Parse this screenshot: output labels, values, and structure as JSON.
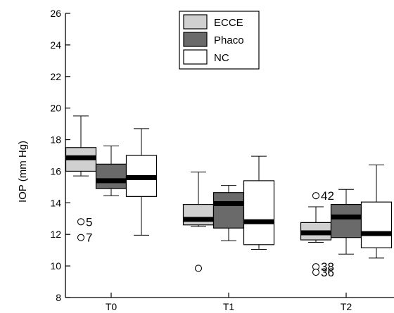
{
  "chart_data": {
    "type": "box",
    "ylabel": "IOP (mm Hg)",
    "xlabel": "",
    "ylim": [
      8,
      26
    ],
    "yticks": [
      8,
      10,
      12,
      14,
      16,
      18,
      20,
      22,
      24,
      26
    ],
    "categories": [
      "T0",
      "T1",
      "T2"
    ],
    "legend_position": "top-center",
    "series": [
      {
        "name": "ECCE",
        "color": "#d0d0d0",
        "boxes": [
          {
            "category": "T0",
            "min": 15.7,
            "q1": 16.0,
            "median": 16.85,
            "q3": 17.5,
            "max": 19.5
          },
          {
            "category": "T1",
            "min": 12.5,
            "q1": 12.6,
            "median": 12.95,
            "q3": 13.9,
            "max": 15.95
          },
          {
            "category": "T2",
            "min": 11.5,
            "q1": 11.65,
            "median": 12.1,
            "q3": 12.75,
            "max": 13.75
          }
        ]
      },
      {
        "name": "Phaco",
        "color": "#6a6a6a",
        "boxes": [
          {
            "category": "T0",
            "min": 14.45,
            "q1": 14.9,
            "median": 15.4,
            "q3": 16.45,
            "max": 17.6
          },
          {
            "category": "T1",
            "min": 11.6,
            "q1": 12.4,
            "median": 13.95,
            "q3": 14.65,
            "max": 15.1
          },
          {
            "category": "T2",
            "min": 10.75,
            "q1": 11.8,
            "median": 13.1,
            "q3": 13.9,
            "max": 14.85
          }
        ]
      },
      {
        "name": "NC",
        "color": "#ffffff",
        "boxes": [
          {
            "category": "T0",
            "min": 11.95,
            "q1": 14.4,
            "median": 15.6,
            "q3": 17.0,
            "max": 18.7
          },
          {
            "category": "T1",
            "min": 11.05,
            "q1": 11.35,
            "median": 12.8,
            "q3": 15.4,
            "max": 16.95
          },
          {
            "category": "T2",
            "min": 10.5,
            "q1": 11.15,
            "median": 12.05,
            "q3": 14.05,
            "max": 16.4
          }
        ]
      }
    ],
    "outliers": [
      {
        "category": "T0",
        "series": "ECCE",
        "value": 12.8,
        "label": "5"
      },
      {
        "category": "T0",
        "series": "ECCE",
        "value": 11.8,
        "label": "7"
      },
      {
        "category": "T1",
        "series": "ECCE",
        "value": 9.85,
        "label": ""
      },
      {
        "category": "T2",
        "series": "ECCE",
        "value": 14.45,
        "label": "42"
      },
      {
        "category": "T2",
        "series": "ECCE",
        "value": 9.95,
        "label": "38"
      },
      {
        "category": "T2",
        "series": "ECCE",
        "value": 9.6,
        "label": "36"
      }
    ]
  }
}
